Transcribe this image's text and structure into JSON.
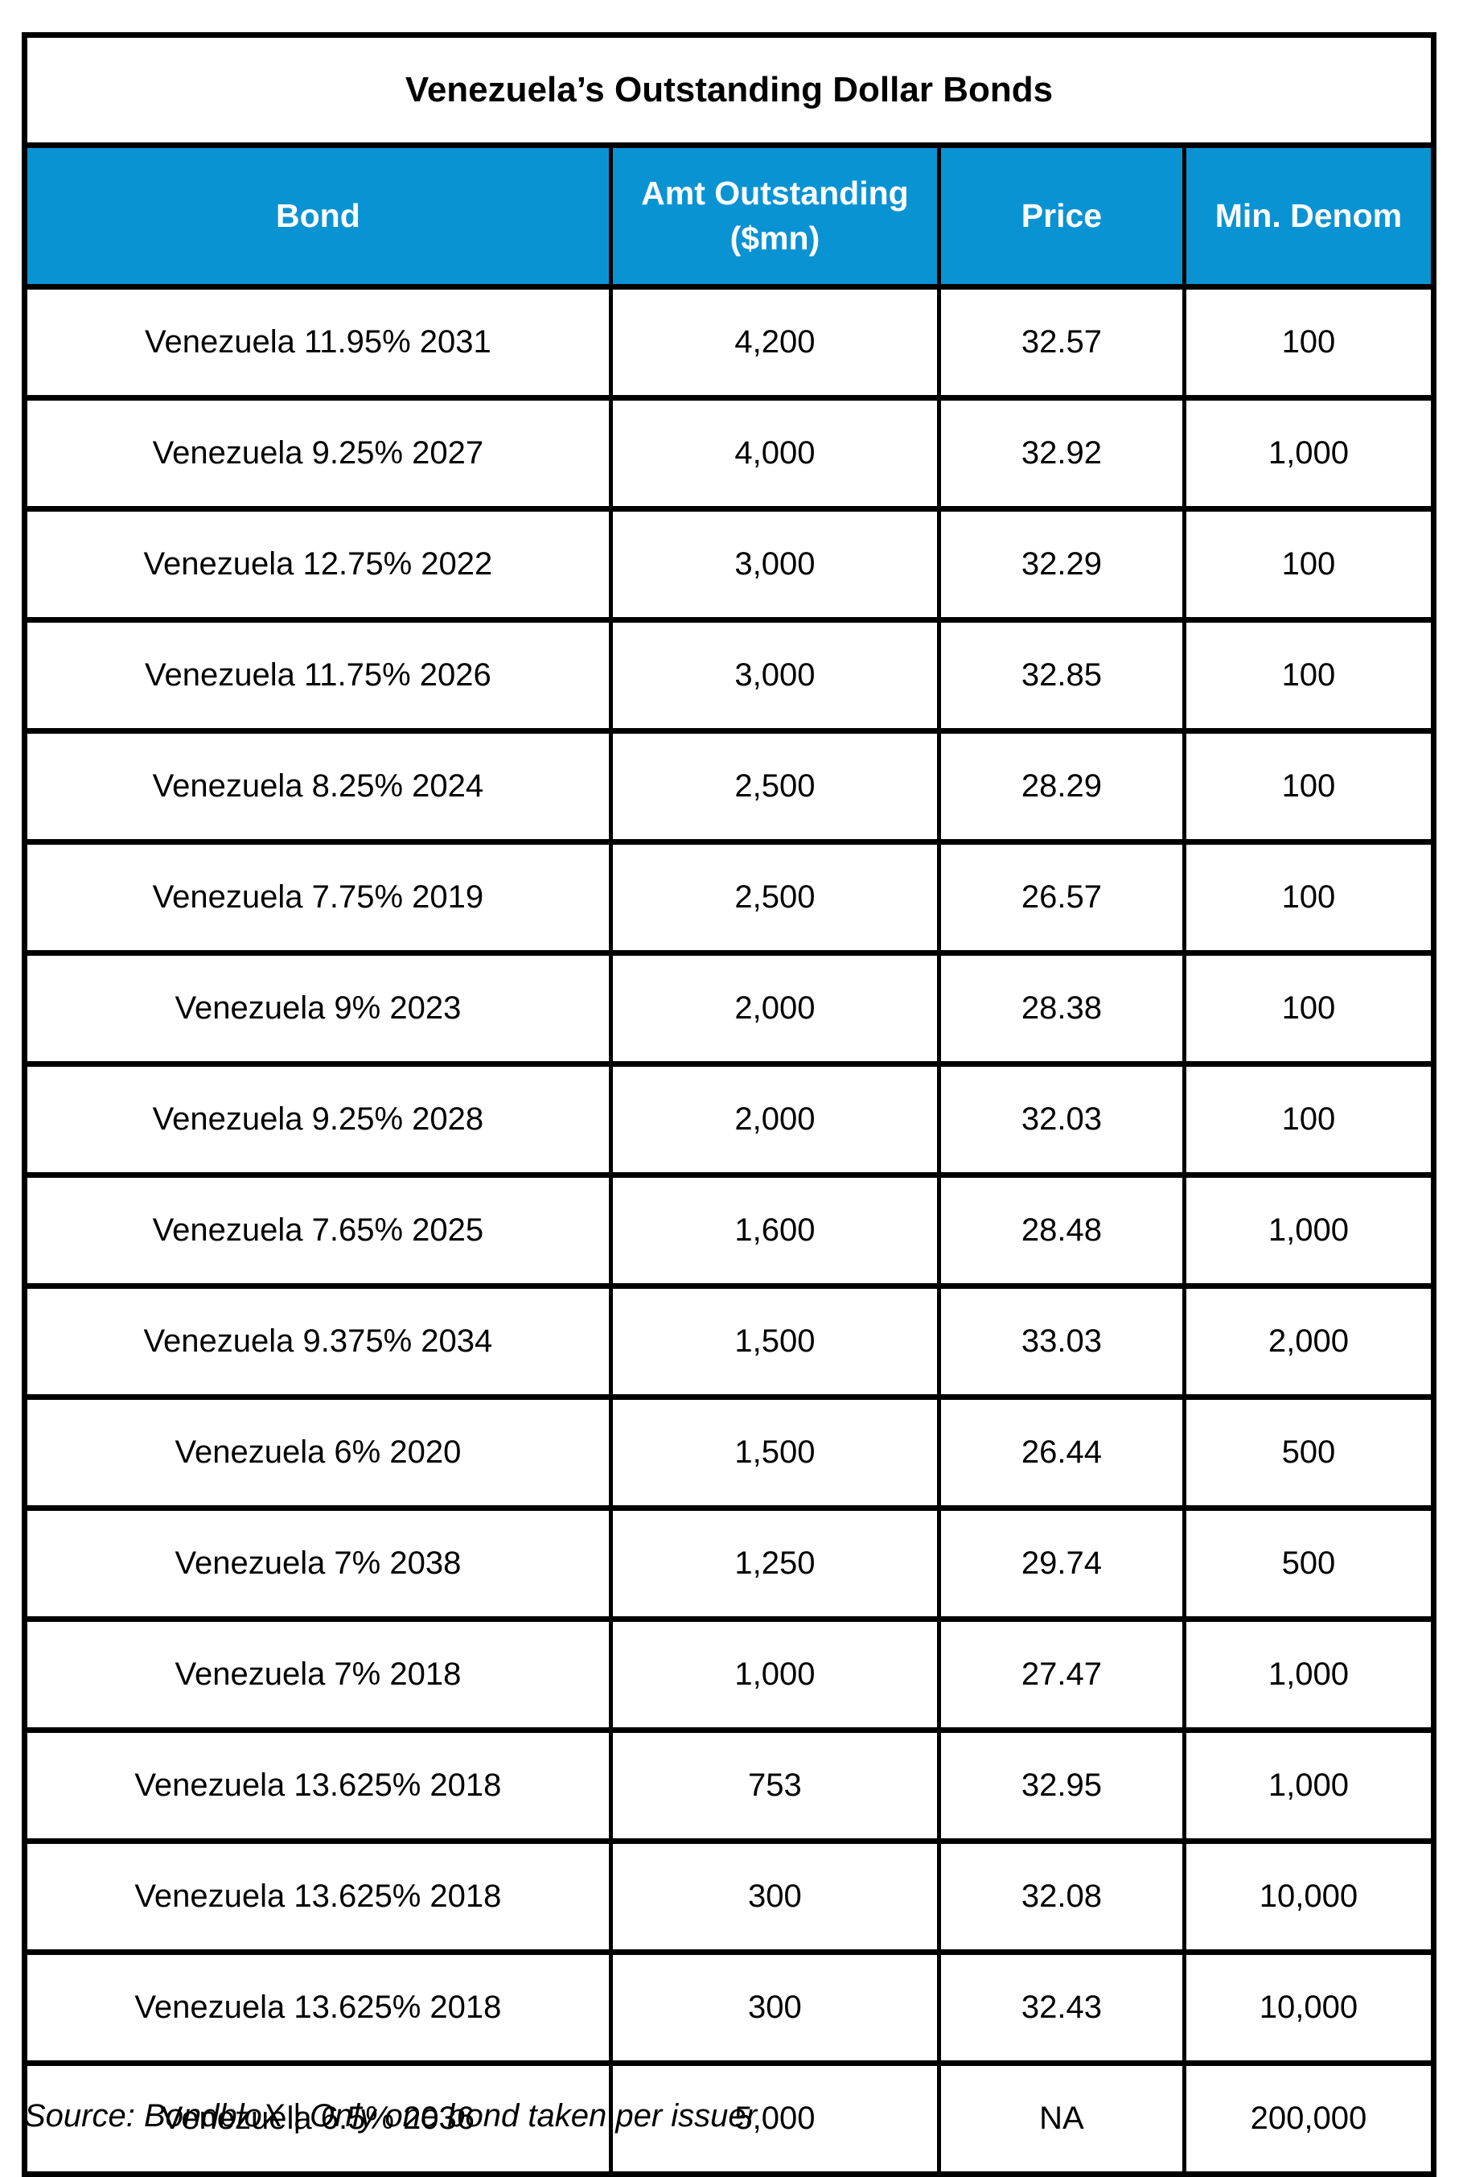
{
  "colors": {
    "header_bg": "#0A93D3",
    "header_text": "#FFFFFF",
    "border": "#000000"
  },
  "chart_data": {
    "type": "table",
    "title": "Venezuela’s Outstanding Dollar Bonds",
    "columns": [
      "Bond",
      "Amt Outstanding ($mn)",
      "Price",
      "Min. Denom"
    ],
    "rows": [
      {
        "bond": "Venezuela 11.95% 2031",
        "amt_outstanding": "4,200",
        "price": "32.57",
        "min_denom": "100"
      },
      {
        "bond": "Venezuela 9.25% 2027",
        "amt_outstanding": "4,000",
        "price": "32.92",
        "min_denom": "1,000"
      },
      {
        "bond": "Venezuela 12.75% 2022",
        "amt_outstanding": "3,000",
        "price": "32.29",
        "min_denom": "100"
      },
      {
        "bond": "Venezuela 11.75% 2026",
        "amt_outstanding": "3,000",
        "price": "32.85",
        "min_denom": "100"
      },
      {
        "bond": "Venezuela 8.25% 2024",
        "amt_outstanding": "2,500",
        "price": "28.29",
        "min_denom": "100"
      },
      {
        "bond": "Venezuela 7.75% 2019",
        "amt_outstanding": "2,500",
        "price": "26.57",
        "min_denom": "100"
      },
      {
        "bond": "Venezuela 9% 2023",
        "amt_outstanding": "2,000",
        "price": "28.38",
        "min_denom": "100"
      },
      {
        "bond": "Venezuela 9.25% 2028",
        "amt_outstanding": "2,000",
        "price": "32.03",
        "min_denom": "100"
      },
      {
        "bond": "Venezuela 7.65% 2025",
        "amt_outstanding": "1,600",
        "price": "28.48",
        "min_denom": "1,000"
      },
      {
        "bond": "Venezuela 9.375% 2034",
        "amt_outstanding": "1,500",
        "price": "33.03",
        "min_denom": "2,000"
      },
      {
        "bond": "Venezuela 6% 2020",
        "amt_outstanding": "1,500",
        "price": "26.44",
        "min_denom": "500"
      },
      {
        "bond": "Venezuela 7% 2038",
        "amt_outstanding": "1,250",
        "price": "29.74",
        "min_denom": "500"
      },
      {
        "bond": "Venezuela 7% 2018",
        "amt_outstanding": "1,000",
        "price": "27.47",
        "min_denom": "1,000"
      },
      {
        "bond": "Venezuela 13.625% 2018",
        "amt_outstanding": "753",
        "price": "32.95",
        "min_denom": "1,000"
      },
      {
        "bond": "Venezuela 13.625% 2018",
        "amt_outstanding": "300",
        "price": "32.08",
        "min_denom": "10,000"
      },
      {
        "bond": "Venezuela 13.625% 2018",
        "amt_outstanding": "300",
        "price": "32.43",
        "min_denom": "10,000"
      },
      {
        "bond": "Venezuela 6.5% 2036",
        "amt_outstanding": "5,000",
        "price": "NA",
        "min_denom": "200,000"
      }
    ],
    "source": "Source: BondbloX | Only one bond taken per issuer"
  }
}
